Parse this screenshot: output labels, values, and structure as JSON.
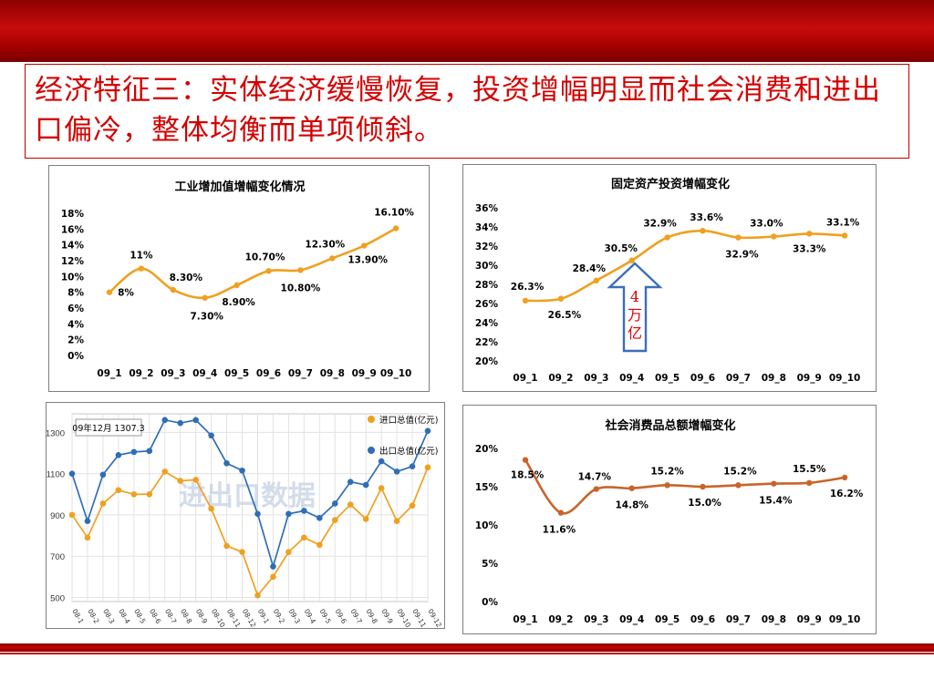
{
  "slide": {
    "title": "经济特征三：实体经济缓慢恢复，投资增幅明显而社会消费和进出口偏冷，整体均衡而单项倾斜。",
    "arrow_label": "4 万 亿",
    "watermark": "进出口数据",
    "colors": {
      "header": "#c00000",
      "title": "#d40000",
      "line_orange": "#f0a020",
      "line_blue": "#2f6eb5",
      "line_brown": "#c8642a",
      "arrow": "#3a6fb8",
      "arrow_text": "#e00000"
    }
  },
  "chart_data": [
    {
      "type": "line",
      "title": "工业增加值增幅变化情况",
      "categories": [
        "09_1",
        "09_2",
        "09_3",
        "09_4",
        "09_5",
        "09_6",
        "09_7",
        "09_8",
        "09_9",
        "09_10"
      ],
      "values": [
        8.0,
        11.0,
        8.3,
        7.3,
        8.9,
        10.7,
        10.8,
        12.3,
        13.9,
        16.1
      ],
      "data_labels": [
        "8%",
        "11%",
        "8.30%",
        "7.30%",
        "8.90%",
        "10.70%",
        "10.80%",
        "12.30%",
        "13.90%",
        "16.10%"
      ],
      "yticks": [
        "0%",
        "2%",
        "4%",
        "6%",
        "8%",
        "10%",
        "12%",
        "14%",
        "16%",
        "18%"
      ],
      "ylim": [
        0,
        18
      ],
      "xlabel": "",
      "ylabel": "",
      "grid": false
    },
    {
      "type": "line",
      "title": "固定资产投资增幅变化",
      "categories": [
        "09_1",
        "09_2",
        "09_3",
        "09_4",
        "09_5",
        "09_6",
        "09_7",
        "09_8",
        "09_9",
        "09_10"
      ],
      "values": [
        26.3,
        26.5,
        28.4,
        30.5,
        32.9,
        33.6,
        32.9,
        33.0,
        33.3,
        33.1
      ],
      "data_labels": [
        "26.3%",
        "26.5%",
        "28.4%",
        "30.5%",
        "32.9%",
        "33.6%",
        "32.9%",
        "33.0%",
        "33.3%",
        "33.1%"
      ],
      "yticks": [
        "20%",
        "22%",
        "24%",
        "26%",
        "28%",
        "30%",
        "32%",
        "34%",
        "36%"
      ],
      "ylim": [
        20,
        36
      ],
      "xlabel": "",
      "ylabel": "",
      "grid": false
    },
    {
      "type": "line",
      "title": "",
      "annotation": "09年12月  1307.3",
      "categories": [
        "08-1",
        "08-2",
        "08-3",
        "08-4",
        "08-5",
        "08-6",
        "08-7",
        "08-8",
        "08-9",
        "08-10",
        "08-11",
        "08-12",
        "09-1",
        "09-2",
        "09-3",
        "09-4",
        "09-5",
        "09-6",
        "09-7",
        "09-8",
        "09-9",
        "09-10",
        "09-11",
        "09-12"
      ],
      "series": [
        {
          "name": "进口总值(亿元)",
          "values": [
            900,
            790,
            955,
            1020,
            1000,
            1000,
            1110,
            1065,
            1070,
            930,
            750,
            720,
            510,
            600,
            720,
            790,
            755,
            875,
            950,
            880,
            1030,
            870,
            945,
            1130
          ]
        },
        {
          "name": "出口总值(亿元)",
          "values": [
            1100,
            870,
            1095,
            1190,
            1205,
            1210,
            1360,
            1345,
            1360,
            1285,
            1150,
            1115,
            905,
            650,
            905,
            920,
            885,
            955,
            1060,
            1045,
            1160,
            1110,
            1135,
            1307
          ]
        }
      ],
      "yticks": [
        "500",
        "700",
        "900",
        "1100",
        "1300"
      ],
      "ylim": [
        480,
        1390
      ],
      "xlabel": "",
      "ylabel": "",
      "legend": "top-right",
      "grid": true
    },
    {
      "type": "line",
      "title": "社会消费品总额增幅变化",
      "categories": [
        "09_1",
        "09_2",
        "09_3",
        "09_4",
        "09_5",
        "09_6",
        "09_7",
        "09_8",
        "09_9",
        "09_10"
      ],
      "values": [
        18.5,
        11.6,
        14.7,
        14.8,
        15.2,
        15.0,
        15.2,
        15.4,
        15.5,
        16.2
      ],
      "data_labels": [
        "18.5%",
        "11.6%",
        "14.7%",
        "14.8%",
        "15.2%",
        "15.0%",
        "15.2%",
        "15.4%",
        "15.5%",
        "16.2%"
      ],
      "yticks": [
        "0%",
        "5%",
        "10%",
        "15%",
        "20%"
      ],
      "ylim": [
        0,
        20
      ],
      "xlabel": "",
      "ylabel": "",
      "grid": false
    }
  ]
}
